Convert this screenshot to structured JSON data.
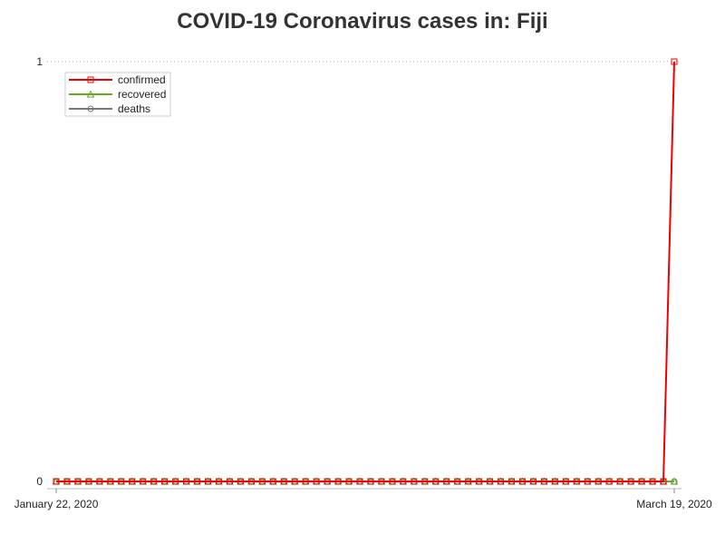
{
  "chart_data": {
    "type": "line",
    "title": "COVID-19 Coronavirus cases in: Fiji",
    "xlabel": "",
    "ylabel": "",
    "x_start": "January 22, 2020",
    "x_end": "March 19, 2020",
    "x_tick_labels": [
      "January 22, 2020",
      "March 19, 2020"
    ],
    "y_tick_labels": [
      "0",
      "1"
    ],
    "ylim": [
      0,
      1
    ],
    "grid": "dotted line at y=1",
    "legend_placement": "top-left",
    "series": [
      {
        "name": "confirmed",
        "color": "#ee0000",
        "marker": "square",
        "values": [
          0,
          0,
          0,
          0,
          0,
          0,
          0,
          0,
          0,
          0,
          0,
          0,
          0,
          0,
          0,
          0,
          0,
          0,
          0,
          0,
          0,
          0,
          0,
          0,
          0,
          0,
          0,
          0,
          0,
          0,
          0,
          0,
          0,
          0,
          0,
          0,
          0,
          0,
          0,
          0,
          0,
          0,
          0,
          0,
          0,
          0,
          0,
          0,
          0,
          0,
          0,
          0,
          0,
          0,
          0,
          0,
          0,
          1
        ]
      },
      {
        "name": "recovered",
        "color": "#66aa22",
        "marker": "triangle",
        "values": [
          0,
          0,
          0,
          0,
          0,
          0,
          0,
          0,
          0,
          0,
          0,
          0,
          0,
          0,
          0,
          0,
          0,
          0,
          0,
          0,
          0,
          0,
          0,
          0,
          0,
          0,
          0,
          0,
          0,
          0,
          0,
          0,
          0,
          0,
          0,
          0,
          0,
          0,
          0,
          0,
          0,
          0,
          0,
          0,
          0,
          0,
          0,
          0,
          0,
          0,
          0,
          0,
          0,
          0,
          0,
          0,
          0,
          0
        ]
      },
      {
        "name": "deaths",
        "color": "#777777",
        "marker": "circle",
        "values": [
          0,
          0,
          0,
          0,
          0,
          0,
          0,
          0,
          0,
          0,
          0,
          0,
          0,
          0,
          0,
          0,
          0,
          0,
          0,
          0,
          0,
          0,
          0,
          0,
          0,
          0,
          0,
          0,
          0,
          0,
          0,
          0,
          0,
          0,
          0,
          0,
          0,
          0,
          0,
          0,
          0,
          0,
          0,
          0,
          0,
          0,
          0,
          0,
          0,
          0,
          0,
          0,
          0,
          0,
          0,
          0,
          0,
          0
        ]
      }
    ]
  }
}
